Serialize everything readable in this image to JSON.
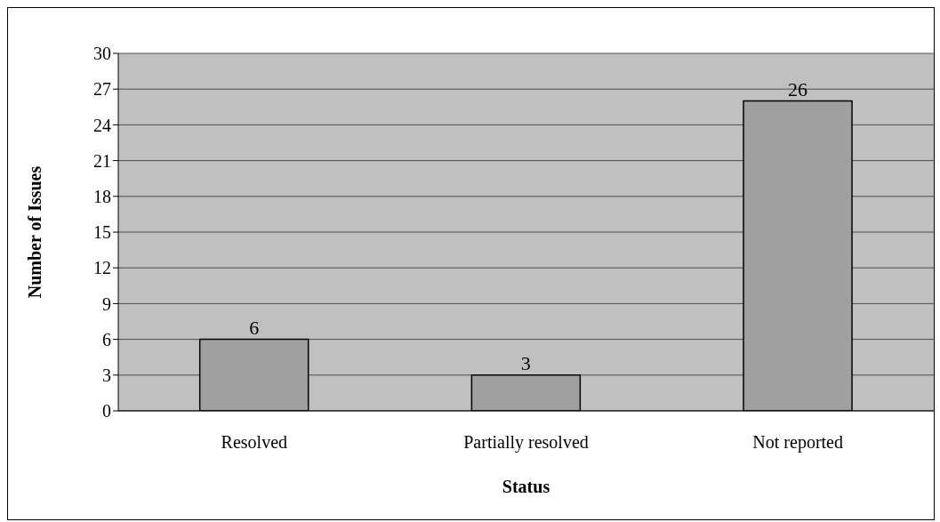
{
  "chart_data": {
    "type": "bar",
    "xlabel": "Status",
    "ylabel": "Number of Issues",
    "categories": [
      "Resolved",
      "Partially resolved",
      "Not reported"
    ],
    "values": [
      6,
      3,
      26
    ],
    "color": "#a0a0a0",
    "ylim": [
      0,
      30
    ],
    "yticks": [
      0,
      3,
      6,
      9,
      12,
      15,
      18,
      21,
      24,
      27,
      30
    ],
    "grid": "y",
    "data_labels": true
  }
}
